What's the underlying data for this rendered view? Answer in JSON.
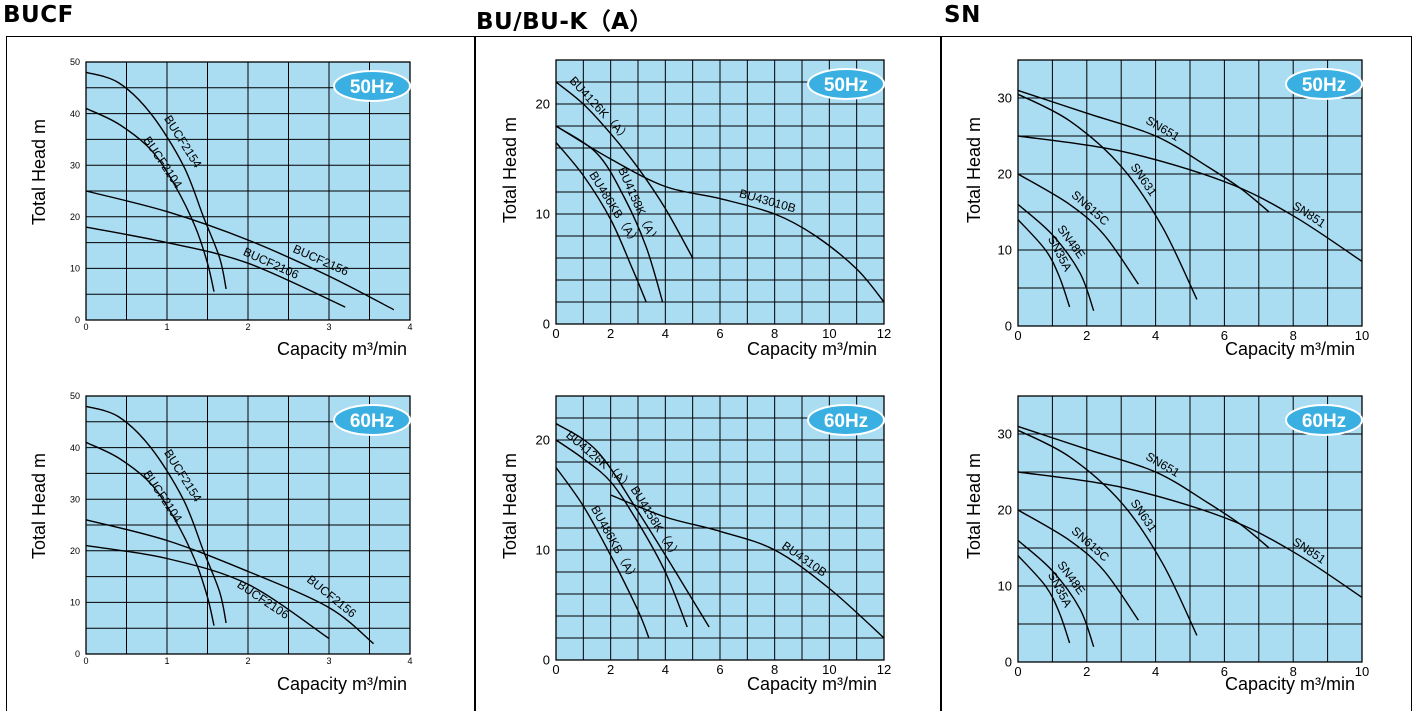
{
  "groups": [
    {
      "title": "BUCF"
    },
    {
      "title": "BU/BU-K（A）"
    },
    {
      "title": "SN"
    }
  ],
  "colors": {
    "plot_bg": "#aadcf2",
    "grid": "#000000",
    "badge": "#3ab0e2",
    "curve": "#000000"
  },
  "chart_data": [
    {
      "type": "line",
      "group": "BUCF",
      "badge": "50Hz",
      "ylabel": "Total Head  m",
      "xlabel": "Capacity  m³/min",
      "xlim": [
        0,
        4
      ],
      "ylim": [
        0,
        50
      ],
      "xticks": [
        0,
        1,
        2,
        3,
        4
      ],
      "yticks": [
        0,
        10,
        20,
        30,
        40,
        50
      ],
      "grid": true,
      "x_minor_step": 0.5,
      "y_minor_step": 5,
      "tick_font": 9,
      "series": [
        {
          "name": "BUCF2154",
          "points": [
            [
              0,
              48
            ],
            [
              0.4,
              46
            ],
            [
              0.8,
              40
            ],
            [
              1.2,
              30
            ],
            [
              1.45,
              20
            ],
            [
              1.65,
              12
            ],
            [
              1.73,
              6
            ]
          ]
        },
        {
          "name": "BUCF2104",
          "points": [
            [
              0,
              41
            ],
            [
              0.4,
              38
            ],
            [
              0.8,
              33
            ],
            [
              1.1,
              26
            ],
            [
              1.35,
              18
            ],
            [
              1.5,
              11
            ],
            [
              1.58,
              5.5
            ]
          ]
        },
        {
          "name": "BUCF2156",
          "points": [
            [
              0,
              25
            ],
            [
              1,
              21
            ],
            [
              2,
              15.5
            ],
            [
              3,
              8.5
            ],
            [
              3.8,
              2
            ]
          ]
        },
        {
          "name": "BUCF2106",
          "points": [
            [
              0,
              18
            ],
            [
              1,
              15
            ],
            [
              2,
              11
            ],
            [
              3.2,
              2.5
            ]
          ]
        }
      ]
    },
    {
      "type": "line",
      "group": "BU/BU-K（A）",
      "badge": "50Hz",
      "ylabel": "Total Head  m",
      "xlabel": "Capacity  m³/min",
      "xlim": [
        0,
        12
      ],
      "ylim": [
        0,
        24
      ],
      "xticks": [
        0,
        2,
        4,
        6,
        8,
        10,
        12
      ],
      "yticks": [
        0,
        10,
        20
      ],
      "grid": true,
      "x_minor_step": 1,
      "y_minor_step": 2,
      "tick_font": 13,
      "series": [
        {
          "name": "BU4126K（A）",
          "points": [
            [
              0,
              22
            ],
            [
              1,
              20
            ],
            [
              2,
              17.3
            ],
            [
              3,
              14.2
            ],
            [
              4,
              10.5
            ],
            [
              5,
              6
            ]
          ]
        },
        {
          "name": "BU43010B",
          "points": [
            [
              0,
              18
            ],
            [
              2,
              15
            ],
            [
              4,
              12.5
            ],
            [
              6,
              11.4
            ],
            [
              8,
              10
            ],
            [
              9.5,
              8
            ],
            [
              11,
              5
            ],
            [
              12,
              2
            ]
          ]
        },
        {
          "name": "BU486KB（A）",
          "points": [
            [
              0,
              16.5
            ],
            [
              1,
              13.5
            ],
            [
              2,
              9.5
            ],
            [
              2.8,
              5
            ],
            [
              3.3,
              2
            ]
          ]
        },
        {
          "name": "BU4158K（A）",
          "points": [
            [
              0,
              18
            ],
            [
              1.5,
              15.5
            ],
            [
              2.5,
              11.5
            ],
            [
              3.3,
              7
            ],
            [
              3.9,
              2
            ]
          ]
        }
      ]
    },
    {
      "type": "line",
      "group": "SN",
      "badge": "50Hz",
      "ylabel": "Total Head  m",
      "xlabel": "Capacity  m³/min",
      "xlim": [
        0,
        10
      ],
      "ylim": [
        0,
        35
      ],
      "xticks": [
        0,
        2,
        4,
        6,
        8,
        10
      ],
      "yticks": [
        0,
        10,
        20,
        30
      ],
      "grid": true,
      "x_minor_step": 1,
      "y_minor_step": 5,
      "tick_font": 13,
      "series": [
        {
          "name": "SN651",
          "points": [
            [
              0,
              31
            ],
            [
              2,
              28
            ],
            [
              4,
              25
            ],
            [
              5.5,
              21
            ],
            [
              6.5,
              18
            ],
            [
              7.3,
              15
            ]
          ]
        },
        {
          "name": "SN851",
          "points": [
            [
              0,
              25
            ],
            [
              3,
              23
            ],
            [
              6,
              19
            ],
            [
              8,
              14.5
            ],
            [
              10,
              8.5
            ]
          ]
        },
        {
          "name": "SN631",
          "points": [
            [
              0,
              30.5
            ],
            [
              1.5,
              27
            ],
            [
              3,
              21
            ],
            [
              4.2,
              13
            ],
            [
              5.2,
              3.5
            ]
          ]
        },
        {
          "name": "SN615C",
          "points": [
            [
              0,
              20
            ],
            [
              1.5,
              16
            ],
            [
              2.5,
              12
            ],
            [
              3.5,
              5.5
            ]
          ]
        },
        {
          "name": "SN48E",
          "points": [
            [
              0,
              16
            ],
            [
              1,
              12
            ],
            [
              1.8,
              7
            ],
            [
              2.2,
              2
            ]
          ]
        },
        {
          "name": "SN35A",
          "points": [
            [
              0,
              14
            ],
            [
              0.8,
              10
            ],
            [
              1.2,
              6.5
            ],
            [
              1.5,
              2.5
            ]
          ]
        }
      ]
    },
    {
      "type": "line",
      "group": "BUCF",
      "badge": "60Hz",
      "ylabel": "Total Head  m",
      "xlabel": "Capacity  m³/min",
      "xlim": [
        0,
        4
      ],
      "ylim": [
        0,
        50
      ],
      "xticks": [
        0,
        1,
        2,
        3,
        4
      ],
      "yticks": [
        0,
        10,
        20,
        30,
        40,
        50
      ],
      "grid": true,
      "x_minor_step": 0.5,
      "y_minor_step": 5,
      "tick_font": 9,
      "series": [
        {
          "name": "BUCF2154",
          "points": [
            [
              0,
              48
            ],
            [
              0.4,
              46
            ],
            [
              0.8,
              40
            ],
            [
              1.2,
              30
            ],
            [
              1.45,
              20
            ],
            [
              1.65,
              12
            ],
            [
              1.73,
              6
            ]
          ]
        },
        {
          "name": "BUCF2104",
          "points": [
            [
              0,
              41
            ],
            [
              0.4,
              38
            ],
            [
              0.8,
              33
            ],
            [
              1.1,
              26
            ],
            [
              1.35,
              18
            ],
            [
              1.5,
              11
            ],
            [
              1.58,
              5.5
            ]
          ]
        },
        {
          "name": "BUCF2156",
          "points": [
            [
              0,
              26
            ],
            [
              1,
              22
            ],
            [
              2,
              16
            ],
            [
              3,
              9
            ],
            [
              3.55,
              2
            ]
          ]
        },
        {
          "name": "BUCF2106",
          "points": [
            [
              0,
              21
            ],
            [
              1,
              18.5
            ],
            [
              2,
              13.5
            ],
            [
              3,
              3
            ]
          ]
        }
      ]
    },
    {
      "type": "line",
      "group": "BU/BU-K（A）",
      "badge": "60Hz",
      "ylabel": "Total Head  m",
      "xlabel": "Capacity  m³/min",
      "xlim": [
        0,
        12
      ],
      "ylim": [
        0,
        24
      ],
      "xticks": [
        0,
        2,
        4,
        6,
        8,
        10,
        12
      ],
      "yticks": [
        0,
        10,
        20
      ],
      "grid": true,
      "x_minor_step": 1,
      "y_minor_step": 2,
      "tick_font": 13,
      "series": [
        {
          "name": "BU4126K（A）",
          "points": [
            [
              0,
              20
            ],
            [
              1,
              18.3
            ],
            [
              2,
              16.2
            ],
            [
              3,
              12.5
            ],
            [
              4,
              8
            ],
            [
              4.8,
              3
            ]
          ]
        },
        {
          "name": "BU4310B",
          "points": [
            [
              2,
              15
            ],
            [
              4,
              13
            ],
            [
              6,
              11.7
            ],
            [
              8,
              10
            ],
            [
              10,
              6.5
            ],
            [
              12,
              2
            ]
          ]
        },
        {
          "name": "BU486KB（A）",
          "points": [
            [
              0,
              17.5
            ],
            [
              1,
              14
            ],
            [
              2,
              9.5
            ],
            [
              3,
              4.5
            ],
            [
              3.4,
              2
            ]
          ]
        },
        {
          "name": "BU4158K（A）",
          "points": [
            [
              0,
              21.5
            ],
            [
              1.5,
              19
            ],
            [
              3,
              13.5
            ],
            [
              4.5,
              7.5
            ],
            [
              5.6,
              3
            ]
          ]
        }
      ]
    },
    {
      "type": "line",
      "group": "SN",
      "badge": "60Hz",
      "ylabel": "Total Head  m",
      "xlabel": "Capacity  m³/min",
      "xlim": [
        0,
        10
      ],
      "ylim": [
        0,
        35
      ],
      "xticks": [
        0,
        2,
        4,
        6,
        8,
        10
      ],
      "yticks": [
        0,
        10,
        20,
        30
      ],
      "grid": true,
      "x_minor_step": 1,
      "y_minor_step": 5,
      "tick_font": 13,
      "series": [
        {
          "name": "SN651",
          "points": [
            [
              0,
              31
            ],
            [
              2,
              28
            ],
            [
              4,
              25
            ],
            [
              5.5,
              21
            ],
            [
              6.5,
              18
            ],
            [
              7.3,
              15
            ]
          ]
        },
        {
          "name": "SN851",
          "points": [
            [
              0,
              25
            ],
            [
              3,
              23
            ],
            [
              6,
              19
            ],
            [
              8,
              14.5
            ],
            [
              10,
              8.5
            ]
          ]
        },
        {
          "name": "SN631",
          "points": [
            [
              0,
              30.5
            ],
            [
              1.5,
              27
            ],
            [
              3,
              21
            ],
            [
              4.2,
              13
            ],
            [
              5.2,
              3.5
            ]
          ]
        },
        {
          "name": "SN615C",
          "points": [
            [
              0,
              20
            ],
            [
              1.5,
              16
            ],
            [
              2.5,
              12
            ],
            [
              3.5,
              5.5
            ]
          ]
        },
        {
          "name": "SN48E",
          "points": [
            [
              0,
              16
            ],
            [
              1,
              12
            ],
            [
              1.8,
              7
            ],
            [
              2.2,
              2
            ]
          ]
        },
        {
          "name": "SN35A",
          "points": [
            [
              0,
              14
            ],
            [
              0.8,
              10
            ],
            [
              1.2,
              6.5
            ],
            [
              1.5,
              2.5
            ]
          ]
        }
      ]
    }
  ]
}
